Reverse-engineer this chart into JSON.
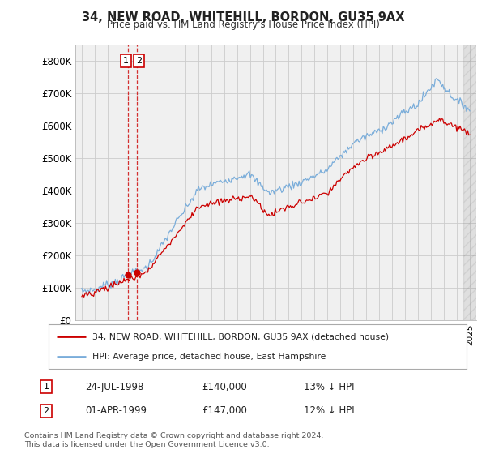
{
  "title": "34, NEW ROAD, WHITEHILL, BORDON, GU35 9AX",
  "subtitle": "Price paid vs. HM Land Registry's House Price Index (HPI)",
  "legend_line1": "34, NEW ROAD, WHITEHILL, BORDON, GU35 9AX (detached house)",
  "legend_line2": "HPI: Average price, detached house, East Hampshire",
  "annotation1_date": "24-JUL-1998",
  "annotation1_price": "£140,000",
  "annotation1_hpi": "13% ↓ HPI",
  "annotation2_date": "01-APR-1999",
  "annotation2_price": "£147,000",
  "annotation2_hpi": "12% ↓ HPI",
  "footnote": "Contains HM Land Registry data © Crown copyright and database right 2024.\nThis data is licensed under the Open Government Licence v3.0.",
  "hpi_color": "#7aadda",
  "price_color": "#cc0000",
  "grid_color": "#cccccc",
  "plot_bg_color": "#f0f0f0",
  "fig_bg_color": "#ffffff",
  "ylim": [
    0,
    850000
  ],
  "yticks": [
    0,
    100000,
    200000,
    300000,
    400000,
    500000,
    600000,
    700000,
    800000
  ],
  "ytick_labels": [
    "£0",
    "£100K",
    "£200K",
    "£300K",
    "£400K",
    "£500K",
    "£600K",
    "£700K",
    "£800K"
  ],
  "sale1_year": 1998.56,
  "sale1_price": 140000,
  "sale2_year": 1999.25,
  "sale2_price": 147000,
  "xstart": 1995,
  "xend": 2025
}
